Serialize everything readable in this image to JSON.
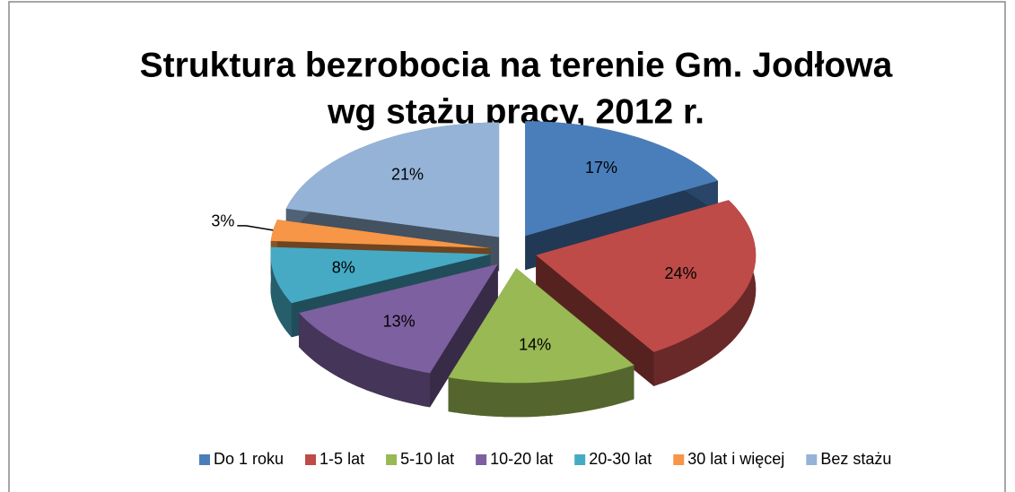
{
  "chart_data": {
    "type": "pie",
    "title": [
      "Struktura bezrobocia na terenie Gm. Jodłowa",
      "wg stażu pracy, 2012 r."
    ],
    "categories": [
      "Do 1 roku",
      "1-5 lat",
      "5-10 lat",
      "10-20 lat",
      "20-30 lat",
      "30 lat i więcej",
      "Bez stażu"
    ],
    "values": [
      17,
      24,
      14,
      13,
      8,
      3,
      21
    ],
    "value_labels": [
      "17%",
      "24%",
      "14%",
      "13%",
      "8%",
      "3%",
      "21%"
    ],
    "colors": [
      "#4a7ebb",
      "#be4b48",
      "#98b954",
      "#7d60a0",
      "#46aac5",
      "#f79646",
      "#95b3d7"
    ],
    "legend": "bottom"
  }
}
